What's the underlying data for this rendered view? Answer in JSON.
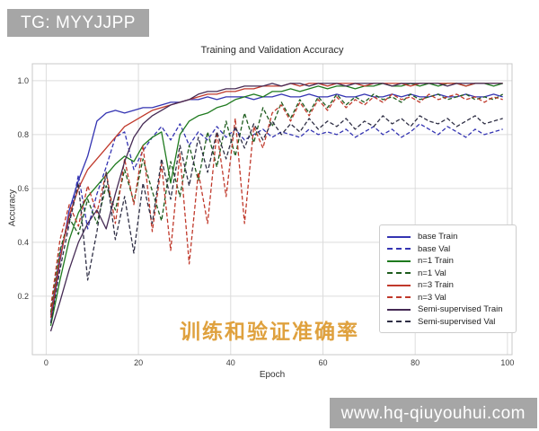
{
  "watermarks": {
    "top_left": "TG: MYYJJPP",
    "bottom_right": "www.hq-qiuyouhui.com",
    "center_caption": "训练和验证准确率"
  },
  "colors": {
    "watermark_bg": "#a6a6a6",
    "watermark_text": "#ffffff",
    "caption_orange": "#dfa13e",
    "grid": "#dcdcdc",
    "frame": "#c8c8c8"
  },
  "chart_data": {
    "type": "line",
    "title": "Training and Validation Accuracy",
    "xlabel": "Epoch",
    "ylabel": "Accuracy",
    "xlim": [
      -3,
      101
    ],
    "ylim": [
      -0.017,
      1.063
    ],
    "xticks": [
      0,
      20,
      40,
      60,
      80,
      100
    ],
    "yticks": [
      0.2,
      0.4,
      0.6,
      0.8,
      1.0
    ],
    "grid": true,
    "legend_position": "lower-right-inside",
    "x": [
      1,
      3,
      5,
      7,
      9,
      11,
      13,
      15,
      17,
      19,
      21,
      23,
      25,
      27,
      29,
      31,
      33,
      35,
      37,
      39,
      41,
      43,
      45,
      47,
      49,
      51,
      53,
      55,
      57,
      59,
      61,
      63,
      65,
      67,
      69,
      71,
      73,
      75,
      77,
      79,
      81,
      83,
      85,
      87,
      89,
      91,
      93,
      95,
      97,
      99
    ],
    "series": [
      {
        "name": "base Train",
        "color": "#3434b2",
        "dash": false,
        "values": [
          0.1,
          0.33,
          0.52,
          0.63,
          0.72,
          0.85,
          0.88,
          0.89,
          0.88,
          0.89,
          0.9,
          0.9,
          0.91,
          0.92,
          0.92,
          0.93,
          0.93,
          0.94,
          0.93,
          0.94,
          0.94,
          0.94,
          0.93,
          0.94,
          0.94,
          0.95,
          0.94,
          0.94,
          0.95,
          0.94,
          0.94,
          0.95,
          0.94,
          0.94,
          0.95,
          0.94,
          0.94,
          0.95,
          0.94,
          0.95,
          0.94,
          0.94,
          0.95,
          0.94,
          0.94,
          0.95,
          0.94,
          0.94,
          0.95,
          0.94
        ]
      },
      {
        "name": "base Val",
        "color": "#3434b2",
        "dash": true,
        "values": [
          0.13,
          0.36,
          0.48,
          0.65,
          0.45,
          0.58,
          0.68,
          0.79,
          0.81,
          0.67,
          0.74,
          0.79,
          0.83,
          0.78,
          0.84,
          0.76,
          0.81,
          0.78,
          0.83,
          0.79,
          0.82,
          0.78,
          0.8,
          0.82,
          0.79,
          0.81,
          0.8,
          0.79,
          0.82,
          0.8,
          0.81,
          0.8,
          0.82,
          0.79,
          0.81,
          0.83,
          0.8,
          0.82,
          0.79,
          0.81,
          0.84,
          0.82,
          0.8,
          0.83,
          0.81,
          0.79,
          0.82,
          0.8,
          0.81,
          0.82
        ]
      },
      {
        "name": "n=1 Train",
        "color": "#1e7a1e",
        "dash": false,
        "values": [
          0.09,
          0.26,
          0.41,
          0.51,
          0.57,
          0.61,
          0.65,
          0.69,
          0.72,
          0.7,
          0.76,
          0.79,
          0.81,
          0.62,
          0.8,
          0.85,
          0.87,
          0.88,
          0.9,
          0.91,
          0.93,
          0.94,
          0.95,
          0.94,
          0.96,
          0.96,
          0.97,
          0.96,
          0.97,
          0.98,
          0.97,
          0.98,
          0.98,
          0.97,
          0.98,
          0.98,
          0.99,
          0.98,
          0.98,
          0.99,
          0.98,
          0.99,
          0.98,
          0.99,
          0.99,
          0.98,
          0.99,
          0.99,
          0.98,
          0.99
        ]
      },
      {
        "name": "n=1 Val",
        "color": "#1d5c1d",
        "dash": true,
        "values": [
          0.14,
          0.37,
          0.49,
          0.43,
          0.56,
          0.47,
          0.61,
          0.52,
          0.67,
          0.55,
          0.71,
          0.59,
          0.48,
          0.7,
          0.57,
          0.76,
          0.63,
          0.81,
          0.68,
          0.85,
          0.72,
          0.88,
          0.77,
          0.9,
          0.83,
          0.92,
          0.86,
          0.93,
          0.88,
          0.94,
          0.9,
          0.95,
          0.91,
          0.94,
          0.92,
          0.95,
          0.93,
          0.94,
          0.92,
          0.95,
          0.93,
          0.94,
          0.95,
          0.93,
          0.94,
          0.95,
          0.93,
          0.94,
          0.93,
          0.95
        ]
      },
      {
        "name": "n=3 Train",
        "color": "#c0392b",
        "dash": false,
        "values": [
          0.12,
          0.34,
          0.5,
          0.6,
          0.67,
          0.71,
          0.75,
          0.79,
          0.83,
          0.85,
          0.87,
          0.89,
          0.9,
          0.91,
          0.92,
          0.93,
          0.94,
          0.95,
          0.95,
          0.96,
          0.96,
          0.97,
          0.97,
          0.98,
          0.98,
          0.98,
          0.99,
          0.98,
          0.99,
          0.99,
          0.98,
          0.99,
          0.99,
          0.99,
          0.98,
          0.99,
          0.99,
          0.99,
          0.99,
          0.98,
          0.99,
          0.99,
          0.99,
          0.99,
          0.99,
          0.98,
          0.99,
          0.99,
          0.99,
          0.99
        ]
      },
      {
        "name": "n=3 Val",
        "color": "#c0392b",
        "dash": true,
        "values": [
          0.16,
          0.41,
          0.54,
          0.46,
          0.61,
          0.51,
          0.66,
          0.47,
          0.71,
          0.54,
          0.76,
          0.44,
          0.69,
          0.37,
          0.73,
          0.32,
          0.66,
          0.47,
          0.81,
          0.57,
          0.86,
          0.47,
          0.83,
          0.75,
          0.88,
          0.91,
          0.85,
          0.92,
          0.87,
          0.93,
          0.89,
          0.94,
          0.9,
          0.93,
          0.91,
          0.94,
          0.92,
          0.95,
          0.93,
          0.94,
          0.92,
          0.95,
          0.93,
          0.94,
          0.95,
          0.93,
          0.94,
          0.92,
          0.94,
          0.93
        ]
      },
      {
        "name": "Semi-supervised Train",
        "color": "#452a54",
        "dash": false,
        "values": [
          0.07,
          0.18,
          0.3,
          0.4,
          0.47,
          0.52,
          0.45,
          0.58,
          0.7,
          0.79,
          0.84,
          0.87,
          0.89,
          0.91,
          0.92,
          0.93,
          0.95,
          0.96,
          0.96,
          0.97,
          0.97,
          0.98,
          0.98,
          0.98,
          0.99,
          0.98,
          0.99,
          0.99,
          0.98,
          0.99,
          0.99,
          0.99,
          0.98,
          0.99,
          0.99,
          0.99,
          0.99,
          0.98,
          0.99,
          0.99,
          0.99,
          0.99,
          0.99,
          0.98,
          0.99,
          0.99,
          0.99,
          0.99,
          0.99,
          0.99
        ]
      },
      {
        "name": "Semi-supervised Val",
        "color": "#2f2f45",
        "dash": true,
        "values": [
          0.1,
          0.3,
          0.47,
          0.62,
          0.26,
          0.44,
          0.66,
          0.41,
          0.57,
          0.36,
          0.62,
          0.47,
          0.71,
          0.56,
          0.76,
          0.61,
          0.79,
          0.66,
          0.81,
          0.71,
          0.83,
          0.75,
          0.84,
          0.78,
          0.85,
          0.8,
          0.84,
          0.81,
          0.86,
          0.82,
          0.85,
          0.83,
          0.86,
          0.82,
          0.85,
          0.83,
          0.87,
          0.84,
          0.86,
          0.83,
          0.87,
          0.85,
          0.84,
          0.86,
          0.83,
          0.85,
          0.87,
          0.84,
          0.85,
          0.86
        ]
      }
    ]
  }
}
